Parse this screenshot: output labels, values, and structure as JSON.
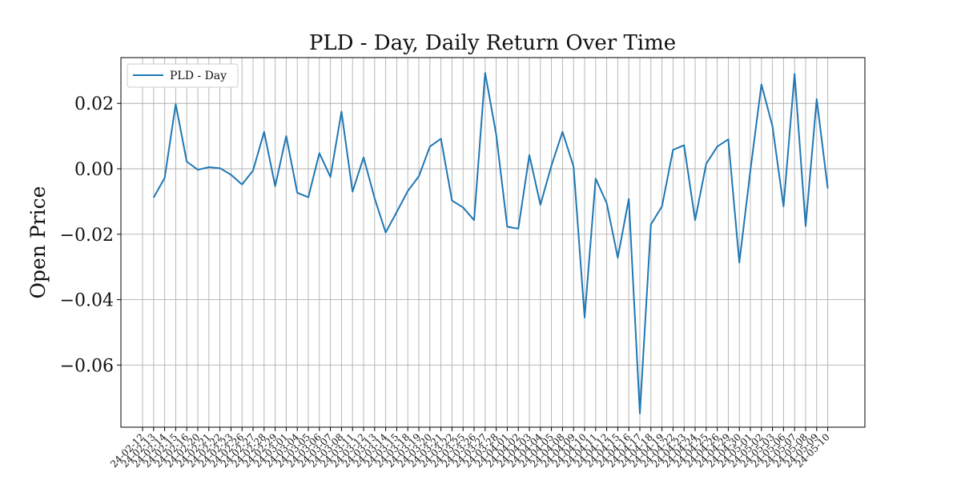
{
  "chart_data": {
    "type": "line",
    "title": "PLD - Day, Daily Return Over Time",
    "xlabel": "",
    "ylabel": "Open Price",
    "grid": true,
    "legend": "top-left",
    "ylim": [
      -0.079,
      0.034
    ],
    "yticks": [
      0.02,
      0.0,
      -0.02,
      -0.04,
      -0.06
    ],
    "ytick_labels": [
      "0.02",
      "0.00",
      "−0.02",
      "−0.04",
      "−0.06"
    ],
    "x": [
      "24-02-12",
      "24-02-13",
      "24-02-14",
      "24-02-15",
      "24-02-16",
      "24-02-20",
      "24-02-21",
      "24-02-22",
      "24-02-23",
      "24-02-26",
      "24-02-27",
      "24-02-28",
      "24-02-29",
      "24-03-01",
      "24-03-04",
      "24-03-05",
      "24-03-06",
      "24-03-07",
      "24-03-08",
      "24-03-11",
      "24-03-12",
      "24-03-13",
      "24-03-14",
      "24-03-15",
      "24-03-18",
      "24-03-19",
      "24-03-20",
      "24-03-21",
      "24-03-22",
      "24-03-25",
      "24-03-26",
      "24-03-27",
      "24-03-28",
      "24-04-01",
      "24-04-02",
      "24-04-03",
      "24-04-04",
      "24-04-05",
      "24-04-08",
      "24-04-09",
      "24-04-10",
      "24-04-11",
      "24-04-12",
      "24-04-15",
      "24-04-16",
      "24-04-17",
      "24-04-18",
      "24-04-19",
      "24-04-22",
      "24-04-23",
      "24-04-24",
      "24-04-25",
      "24-04-26",
      "24-04-29",
      "24-04-30",
      "24-05-01",
      "24-05-02",
      "24-05-03",
      "24-05-06",
      "24-05-07",
      "24-05-08",
      "24-05-09",
      "24-05-10"
    ],
    "series": [
      {
        "name": "PLD - Day",
        "color": "#1f77b4",
        "values": [
          null,
          -0.0088,
          -0.0028,
          0.0198,
          0.0022,
          -0.0003,
          0.0005,
          0.0002,
          -0.0018,
          -0.0048,
          -0.0005,
          0.0113,
          -0.0053,
          0.01,
          -0.0073,
          -0.0087,
          0.0048,
          -0.0025,
          0.0175,
          -0.007,
          0.0035,
          -0.009,
          -0.0195,
          -0.0132,
          -0.0068,
          -0.0023,
          0.0068,
          0.0092,
          -0.0097,
          -0.0118,
          -0.0157,
          0.0293,
          0.0105,
          -0.0177,
          -0.0183,
          0.0042,
          -0.011,
          0.001,
          0.0113,
          0.0007,
          -0.0455,
          -0.003,
          -0.0105,
          -0.0272,
          -0.0092,
          -0.0748,
          -0.017,
          -0.0115,
          0.0058,
          0.0072,
          -0.0157,
          0.0015,
          0.0068,
          0.009,
          -0.0287,
          -0.0005,
          0.0258,
          0.013,
          -0.0115,
          0.029,
          -0.0175,
          0.0213,
          -0.006
        ]
      }
    ]
  }
}
